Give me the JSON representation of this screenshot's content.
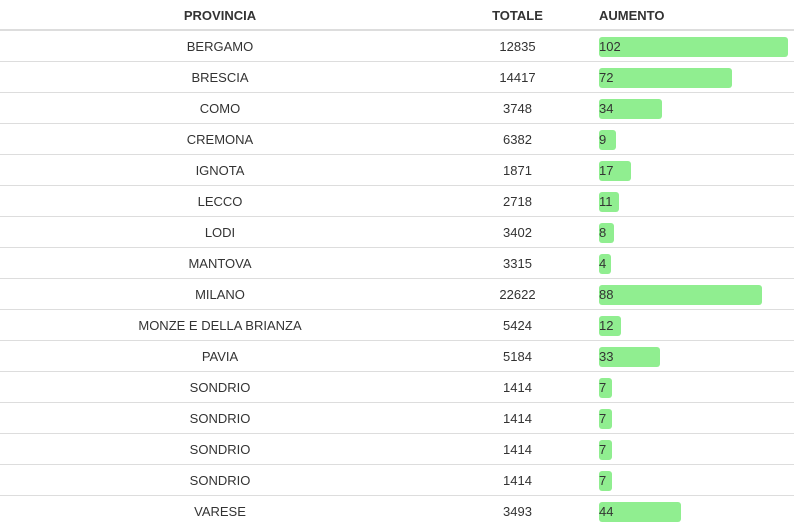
{
  "table": {
    "headers": {
      "provincia": "PROVINCIA",
      "totale": "TOTALE",
      "aumento": "AUMENTO"
    }
  },
  "chart_data": {
    "type": "bar",
    "bar_color": "#90ee90",
    "categories": [
      "BERGAMO",
      "BRESCIA",
      "COMO",
      "CREMONA",
      "IGNOTA",
      "LECCO",
      "LODI",
      "MANTOVA",
      "MILANO",
      "MONZE E DELLA BRIANZA",
      "PAVIA",
      "SONDRIO",
      "SONDRIO",
      "SONDRIO",
      "SONDRIO",
      "VARESE"
    ],
    "totale": [
      "12835",
      "14417",
      "3748",
      "6382",
      "1871",
      "2718",
      "3402",
      "3315",
      "22622",
      "5424",
      "5184",
      "1414",
      "1414",
      "1414",
      "1414",
      "3493"
    ],
    "values": [
      102,
      72,
      34,
      9,
      17,
      11,
      8,
      4,
      88,
      12,
      33,
      7,
      7,
      7,
      7,
      44
    ],
    "ylim": [
      0,
      102
    ]
  }
}
